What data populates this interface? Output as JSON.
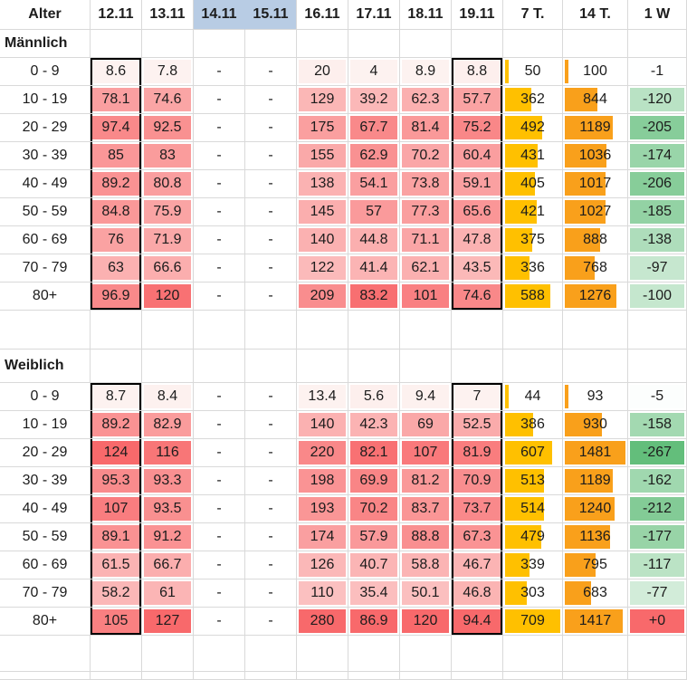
{
  "table": {
    "corner_header": "Alter",
    "date_columns": [
      "12.11",
      "13.11",
      "14.11",
      "15.11",
      "16.11",
      "17.11",
      "18.11",
      "19.11"
    ],
    "highlighted_date_columns": [
      "14.11",
      "15.11"
    ],
    "selected_date_columns": [
      "12.11",
      "19.11"
    ],
    "agg_columns": [
      "7 T.",
      "14 T.",
      "1 W"
    ],
    "sections": [
      {
        "label": "Männlich",
        "rows": [
          {
            "age": "0 - 9",
            "daily": [
              "8.6",
              "7.8",
              "-",
              "-",
              "20",
              "4",
              "8.9",
              "8.8"
            ],
            "t7": "50",
            "t14": "100",
            "w1": "-1"
          },
          {
            "age": "10 - 19",
            "daily": [
              "78.1",
              "74.6",
              "-",
              "-",
              "129",
              "39.2",
              "62.3",
              "57.7"
            ],
            "t7": "362",
            "t14": "844",
            "w1": "-120"
          },
          {
            "age": "20 - 29",
            "daily": [
              "97.4",
              "92.5",
              "-",
              "-",
              "175",
              "67.7",
              "81.4",
              "75.2"
            ],
            "t7": "492",
            "t14": "1189",
            "w1": "-205"
          },
          {
            "age": "30 - 39",
            "daily": [
              "85",
              "83",
              "-",
              "-",
              "155",
              "62.9",
              "70.2",
              "60.4"
            ],
            "t7": "431",
            "t14": "1036",
            "w1": "-174"
          },
          {
            "age": "40 - 49",
            "daily": [
              "89.2",
              "80.8",
              "-",
              "-",
              "138",
              "54.1",
              "73.8",
              "59.1"
            ],
            "t7": "405",
            "t14": "1017",
            "w1": "-206"
          },
          {
            "age": "50 - 59",
            "daily": [
              "84.8",
              "75.9",
              "-",
              "-",
              "145",
              "57",
              "77.3",
              "65.6"
            ],
            "t7": "421",
            "t14": "1027",
            "w1": "-185"
          },
          {
            "age": "60 - 69",
            "daily": [
              "76",
              "71.9",
              "-",
              "-",
              "140",
              "44.8",
              "71.1",
              "47.8"
            ],
            "t7": "375",
            "t14": "888",
            "w1": "-138"
          },
          {
            "age": "70 - 79",
            "daily": [
              "63",
              "66.6",
              "-",
              "-",
              "122",
              "41.4",
              "62.1",
              "43.5"
            ],
            "t7": "336",
            "t14": "768",
            "w1": "-97"
          },
          {
            "age": "80+",
            "daily": [
              "96.9",
              "120",
              "-",
              "-",
              "209",
              "83.2",
              "101",
              "74.6"
            ],
            "t7": "588",
            "t14": "1276",
            "w1": "-100"
          }
        ]
      },
      {
        "label": "Weiblich",
        "rows": [
          {
            "age": "0 - 9",
            "daily": [
              "8.7",
              "8.4",
              "-",
              "-",
              "13.4",
              "5.6",
              "9.4",
              "7"
            ],
            "t7": "44",
            "t14": "93",
            "w1": "-5"
          },
          {
            "age": "10 - 19",
            "daily": [
              "89.2",
              "82.9",
              "-",
              "-",
              "140",
              "42.3",
              "69",
              "52.5"
            ],
            "t7": "386",
            "t14": "930",
            "w1": "-158"
          },
          {
            "age": "20 - 29",
            "daily": [
              "124",
              "116",
              "-",
              "-",
              "220",
              "82.1",
              "107",
              "81.9"
            ],
            "t7": "607",
            "t14": "1481",
            "w1": "-267"
          },
          {
            "age": "30 - 39",
            "daily": [
              "95.3",
              "93.3",
              "-",
              "-",
              "198",
              "69.9",
              "81.2",
              "70.9"
            ],
            "t7": "513",
            "t14": "1189",
            "w1": "-162"
          },
          {
            "age": "40 - 49",
            "daily": [
              "107",
              "93.5",
              "-",
              "-",
              "193",
              "70.2",
              "83.7",
              "73.7"
            ],
            "t7": "514",
            "t14": "1240",
            "w1": "-212"
          },
          {
            "age": "50 - 59",
            "daily": [
              "89.1",
              "91.2",
              "-",
              "-",
              "174",
              "57.9",
              "88.8",
              "67.3"
            ],
            "t7": "479",
            "t14": "1136",
            "w1": "-177"
          },
          {
            "age": "60 - 69",
            "daily": [
              "61.5",
              "66.7",
              "-",
              "-",
              "126",
              "40.7",
              "58.8",
              "46.7"
            ],
            "t7": "339",
            "t14": "795",
            "w1": "-117"
          },
          {
            "age": "70 - 79",
            "daily": [
              "58.2",
              "61",
              "-",
              "-",
              "110",
              "35.4",
              "50.1",
              "46.8"
            ],
            "t7": "303",
            "t14": "683",
            "w1": "-77"
          },
          {
            "age": "80+",
            "daily": [
              "105",
              "127",
              "-",
              "-",
              "280",
              "86.9",
              "120",
              "94.4"
            ],
            "t7": "709",
            "t14": "1417",
            "w1": "+0"
          }
        ]
      }
    ]
  },
  "colors": {
    "header_highlight": "#b8cce4",
    "heat_red_max": "#f8696b",
    "heat_red_min": "#fdf2f0",
    "heat_green_max": "#63be7b",
    "heat_green_min": "#ffffff",
    "bar_7t": "#ffc000",
    "bar_14t": "#f9a01b",
    "positive_w1_fill": "#f8696b",
    "gridline": "#d9d9d9",
    "selection_border": "#000000",
    "text": "#1c1c1c"
  }
}
